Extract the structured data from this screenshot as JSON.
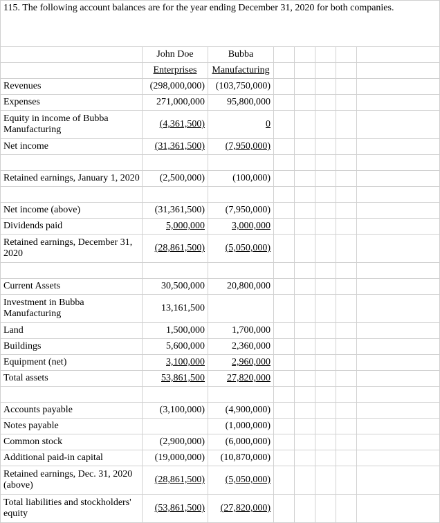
{
  "title": "115.  The following account balances are for the year ending December 31, 2020 for both companies.",
  "headers": {
    "col1a": "John Doe",
    "col1b": "Enterprises",
    "col2a": "Bubba",
    "col2b": "Manufacturing"
  },
  "rows": {
    "revenues": {
      "label": "Revenues",
      "v1": "(298,000,000)",
      "v2": "(103,750,000)"
    },
    "expenses": {
      "label": "Expenses",
      "v1": "271,000,000",
      "v2": "95,800,000"
    },
    "equity_income": {
      "label": "Equity in income of Bubba Manufacturing",
      "v1": "(4,361,500)",
      "v2": "0"
    },
    "net_income": {
      "label": "Net income",
      "v1": "(31,361,500)",
      "v2": "(7,950,000)"
    },
    "re_jan1": {
      "label": "Retained earnings, January 1, 2020",
      "v1": "(2,500,000)",
      "v2": "(100,000)"
    },
    "net_income_above": {
      "label": "Net income (above)",
      "v1": "(31,361,500)",
      "v2": "(7,950,000)"
    },
    "dividends": {
      "label": "Dividends paid",
      "v1": "5,000,000",
      "v2": "3,000,000"
    },
    "re_dec31": {
      "label": "Retained earnings, December 31, 2020",
      "v1": "(28,861,500)",
      "v2": "(5,050,000)"
    },
    "current_assets": {
      "label": "Current Assets",
      "v1": "30,500,000",
      "v2": "20,800,000"
    },
    "investment": {
      "label": "Investment in Bubba Manufacturing",
      "v1": "13,161,500",
      "v2": ""
    },
    "land": {
      "label": "Land",
      "v1": "1,500,000",
      "v2": "1,700,000"
    },
    "buildings": {
      "label": "Buildings",
      "v1": "5,600,000",
      "v2": "2,360,000"
    },
    "equipment": {
      "label": "Equipment (net)",
      "v1": "3,100,000",
      "v2": "2,960,000"
    },
    "total_assets": {
      "label": "Total assets",
      "v1": "53,861,500",
      "v2": "27,820,000"
    },
    "ap": {
      "label": "Accounts payable",
      "v1": "(3,100,000)",
      "v2": "(4,900,000)"
    },
    "np": {
      "label": "Notes payable",
      "v1": "",
      "v2": "(1,000,000)"
    },
    "cs": {
      "label": "Common stock",
      "v1": "(2,900,000)",
      "v2": "(6,000,000)"
    },
    "apic": {
      "label": "Additional paid-in capital",
      "v1": "(19,000,000)",
      "v2": "(10,870,000)"
    },
    "re_dec31_2": {
      "label": "Retained earnings, Dec. 31, 2020 (above)",
      "v1": "(28,861,500)",
      "v2": "(5,050,000)"
    },
    "total_liab": {
      "label": "Total liabilities and stockholders' equity",
      "v1": "(53,861,500)",
      "v2": "(27,820,000)"
    }
  }
}
